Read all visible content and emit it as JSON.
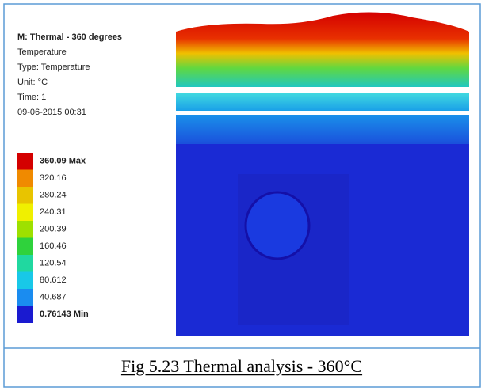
{
  "header": {
    "title": "M: Thermal - 360 degrees",
    "lines": [
      "Temperature",
      "Type: Temperature",
      "Unit: °C",
      "Time: 1",
      "09-06-2015 00:31"
    ]
  },
  "legend": {
    "items": [
      {
        "label": "360.09 Max",
        "color": "#d40000"
      },
      {
        "label": "320.16",
        "color": "#f08a00"
      },
      {
        "label": "280.24",
        "color": "#e8c400"
      },
      {
        "label": "240.31",
        "color": "#f0f000"
      },
      {
        "label": "200.39",
        "color": "#9ee000"
      },
      {
        "label": "160.46",
        "color": "#2fd23c"
      },
      {
        "label": "120.54",
        "color": "#20d8a0"
      },
      {
        "label": "80.612",
        "color": "#18c8e8"
      },
      {
        "label": "40.687",
        "color": "#1a8cf0"
      },
      {
        "label": "0.76143 Min",
        "color": "#1a1ad0"
      }
    ]
  },
  "caption": "Fig 5.23 Thermal analysis - 360°C"
}
